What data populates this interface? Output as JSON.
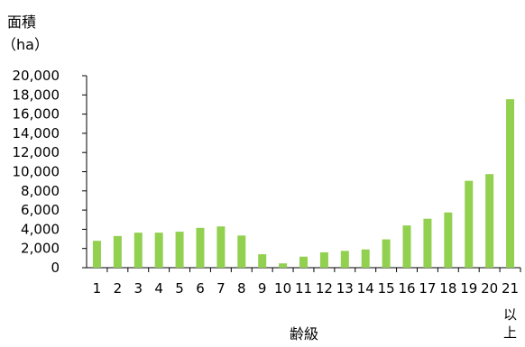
{
  "chart_data": {
    "type": "bar",
    "title": "",
    "ylabel": "面積",
    "yunit": "（ha）",
    "xlabel": "齢級",
    "categories": [
      "1",
      "2",
      "3",
      "4",
      "5",
      "6",
      "7",
      "8",
      "9",
      "10",
      "11",
      "12",
      "13",
      "14",
      "15",
      "16",
      "17",
      "18",
      "19",
      "20",
      "21"
    ],
    "last_category_suffix": [
      "以",
      "上"
    ],
    "values": [
      2800,
      3300,
      3650,
      3650,
      3750,
      4150,
      4300,
      3350,
      1400,
      450,
      1150,
      1600,
      1750,
      1900,
      2950,
      4400,
      5100,
      5750,
      9050,
      9750,
      17550
    ],
    "ylim": [
      0,
      20000
    ],
    "yticks": [
      "0",
      "2,000",
      "4,000",
      "6,000",
      "8,000",
      "10,000",
      "12,000",
      "14,000",
      "16,000",
      "18,000",
      "20,000"
    ],
    "bar_color": "#92d050",
    "grid": false,
    "legend": "none"
  }
}
